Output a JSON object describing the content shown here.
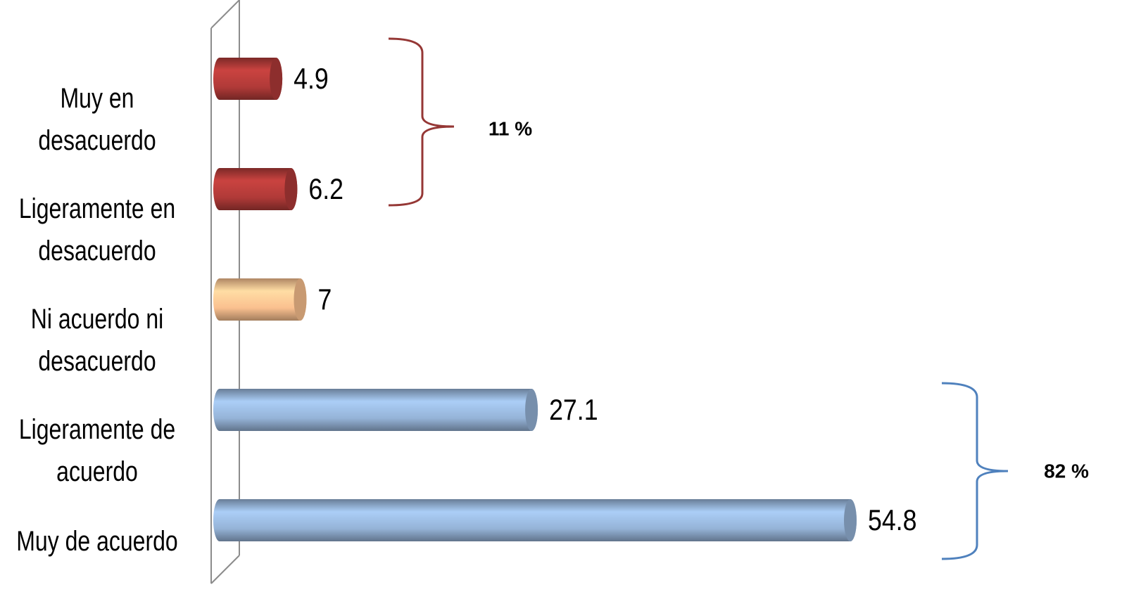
{
  "chart_data": {
    "type": "bar",
    "orientation": "horizontal",
    "categories": [
      "Muy en desacuerdo",
      "Ligeramente en desacuerdo",
      "Ni acuerdo ni desacuerdo",
      "Ligeramente de acuerdo",
      "Muy de acuerdo"
    ],
    "values": [
      4.9,
      6.2,
      7,
      27.1,
      54.8
    ],
    "colors": [
      "#b03a38",
      "#b03a38",
      "#fac08f",
      "#95b3d7",
      "#95b3d7"
    ],
    "annotations": [
      "11 %",
      "82 %"
    ]
  }
}
